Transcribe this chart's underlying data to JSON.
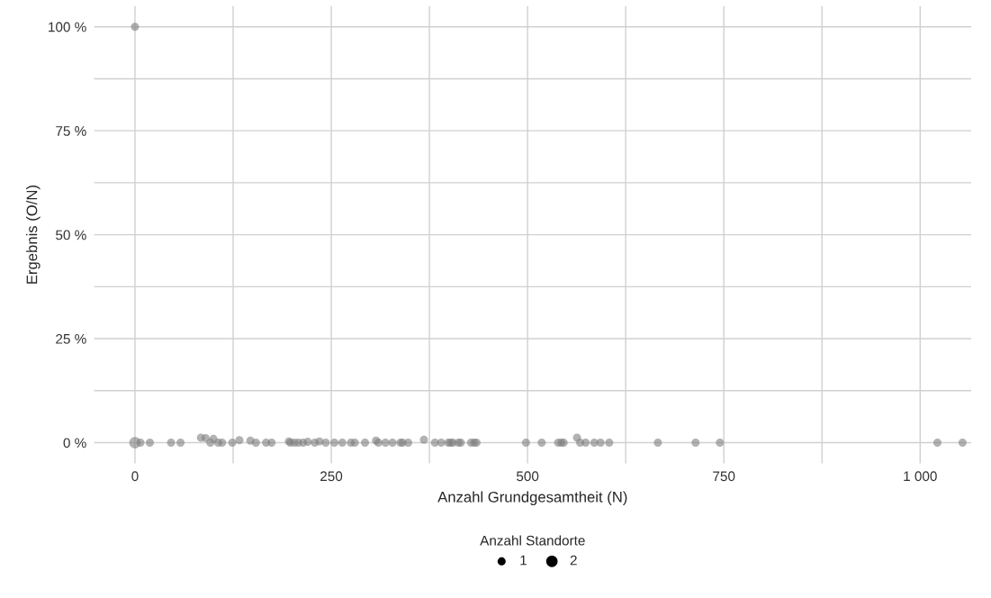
{
  "chart_data": {
    "type": "bubble",
    "xlabel": "Anzahl Grundgesamtheit (N)",
    "ylabel": "Ergebnis (O/N)",
    "legend_title": "Anzahl Standorte",
    "x": [
      0,
      0,
      7,
      19,
      46,
      58,
      84,
      90,
      96,
      100,
      106,
      111,
      124,
      133,
      147,
      154,
      167,
      174,
      196,
      198,
      203,
      208,
      214,
      220,
      229,
      235,
      243,
      254,
      264,
      275,
      280,
      293,
      307,
      310,
      319,
      328,
      338,
      341,
      348,
      368,
      382,
      390,
      399,
      402,
      405,
      412,
      415,
      428,
      432,
      435,
      498,
      518,
      539,
      543,
      546,
      563,
      567,
      574,
      585,
      593,
      604,
      666,
      714,
      745,
      1022,
      1054
    ],
    "values": [
      100,
      0,
      0,
      0,
      0,
      0,
      1.2,
      1.1,
      0,
      0.9,
      0,
      0,
      0,
      0.6,
      0.5,
      0,
      0,
      0,
      0.3,
      0,
      0,
      0,
      0,
      0.2,
      0,
      0.3,
      0,
      0,
      0,
      0,
      0,
      0,
      0.5,
      0,
      0,
      0,
      0,
      0,
      0,
      0.7,
      0,
      0,
      0,
      0,
      0,
      0,
      0,
      0,
      0,
      0,
      0,
      0,
      0,
      0,
      0,
      1.2,
      0,
      0,
      0,
      0,
      0,
      0,
      0,
      0,
      0,
      0
    ],
    "sizes": [
      1,
      2,
      1,
      1,
      1,
      1,
      1,
      1,
      1,
      1,
      1,
      1,
      1,
      1,
      1,
      1,
      1,
      1,
      1,
      1,
      1,
      1,
      1,
      1,
      1,
      1,
      1,
      1,
      1,
      1,
      1,
      1,
      1,
      1,
      1,
      1,
      1,
      1,
      1,
      1,
      1,
      1,
      1,
      1,
      1,
      1,
      1,
      1,
      1,
      1,
      1,
      1,
      1,
      1,
      1,
      1,
      1,
      1,
      1,
      1,
      1,
      1,
      1,
      1,
      1,
      1
    ],
    "size_legend": [
      1,
      2
    ],
    "color": "#7f7f7f",
    "xlim": [
      -52,
      1065
    ],
    "ylim": [
      -5,
      105
    ],
    "xticks": [
      0,
      {
        "value": 125,
        "label": null
      },
      250,
      {
        "value": 375,
        "label": null
      },
      500,
      {
        "value": 625,
        "label": null
      },
      750,
      {
        "value": 875,
        "label": null
      },
      {
        "value": 1000,
        "label": "1 000"
      }
    ],
    "yticks": [
      {
        "value": 0,
        "label": "0 %"
      },
      {
        "value": 12.5,
        "label": null
      },
      {
        "value": 25,
        "label": "25 %"
      },
      {
        "value": 37.5,
        "label": null
      },
      {
        "value": 50,
        "label": "50 %"
      },
      {
        "value": 62.5,
        "label": null
      },
      {
        "value": 75,
        "label": "75 %"
      },
      {
        "value": 87.5,
        "label": null
      },
      {
        "value": 100,
        "label": "100 %"
      }
    ],
    "grid": true
  }
}
